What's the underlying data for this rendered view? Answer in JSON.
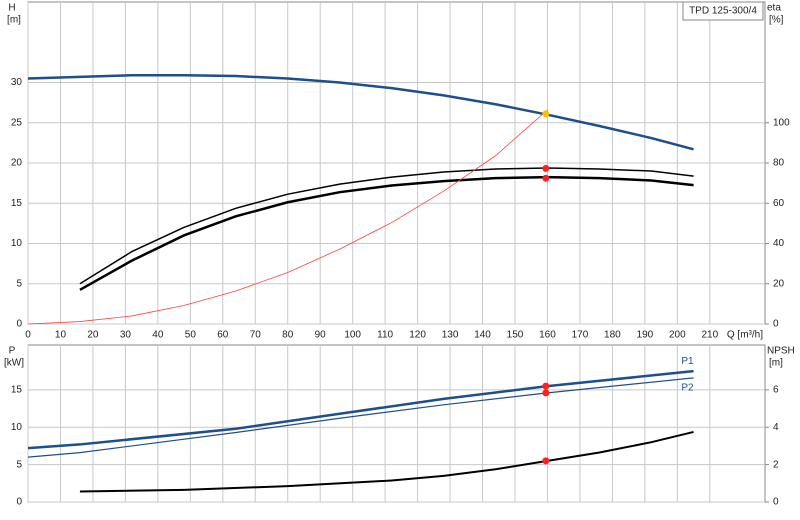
{
  "chart_data": [
    {
      "type": "line",
      "label_box": "TPD 125-300/4",
      "ylabel": "H",
      "yunit": "[m]",
      "y2label": "eta",
      "y2unit": "[%]",
      "xlabel": "Q [m³/h]",
      "xlim": [
        0,
        227
      ],
      "xticks": [
        0,
        10,
        20,
        30,
        40,
        50,
        60,
        70,
        80,
        90,
        100,
        110,
        120,
        130,
        140,
        150,
        160,
        170,
        180,
        190,
        200,
        210
      ],
      "ylim": [
        0,
        40
      ],
      "yticks": [
        0,
        5,
        10,
        15,
        20,
        25,
        30
      ],
      "y2lim": [
        0,
        160
      ],
      "y2ticks": [
        0,
        20,
        40,
        60,
        80,
        100
      ],
      "grid": true,
      "series": [
        {
          "color": "#1f4e8c",
          "width": 2.5,
          "x": [
            0,
            16,
            32,
            48,
            64,
            80,
            96,
            112,
            128,
            144,
            160,
            176,
            192,
            205
          ],
          "values": [
            30.5,
            30.7,
            30.9,
            30.9,
            30.8,
            30.5,
            30.0,
            29.3,
            28.4,
            27.3,
            26.0,
            24.6,
            23.1,
            21.7
          ]
        },
        {
          "color": "#000000",
          "width": 1.5,
          "axis": "y2",
          "x": [
            16,
            32,
            48,
            64,
            80,
            96,
            112,
            128,
            144,
            160,
            176,
            192,
            205
          ],
          "values": [
            20,
            36,
            48,
            57.5,
            64.5,
            69.5,
            73,
            75.5,
            77,
            77.5,
            77,
            76,
            73.5
          ]
        },
        {
          "color": "#000000",
          "width": 2.5,
          "axis": "y2",
          "x": [
            16,
            32,
            48,
            64,
            80,
            96,
            112,
            128,
            144,
            160,
            176,
            192,
            205
          ],
          "values": [
            17,
            31.5,
            44,
            53.5,
            60.5,
            65.5,
            68.8,
            71,
            72.5,
            73,
            72.5,
            71.3,
            69
          ]
        },
        {
          "color": "#ff4040",
          "width": 0.8,
          "x": [
            0,
            16,
            32,
            48,
            64,
            80,
            96,
            112,
            128,
            144,
            160
          ],
          "values": [
            0,
            0.3,
            1.0,
            2.3,
            4.1,
            6.4,
            9.3,
            12.6,
            16.5,
            20.9,
            26.6
          ]
        }
      ],
      "points": [
        {
          "x": 159.5,
          "y": 77.3,
          "axis": "y2",
          "color": "#ff2020"
        },
        {
          "x": 159.5,
          "y": 72.4,
          "axis": "y2",
          "color": "#ff2020"
        },
        {
          "x": 159.5,
          "y": 26.1,
          "color": "#ffc000"
        }
      ]
    },
    {
      "type": "line",
      "ylabel": "P",
      "yunit": "[kW]",
      "y2label": "NPSH",
      "y2unit": "[m]",
      "xlim": [
        0,
        227
      ],
      "xticks": [
        0,
        10,
        20,
        30,
        40,
        50,
        60,
        70,
        80,
        90,
        100,
        110,
        120,
        130,
        140,
        150,
        160,
        170,
        180,
        190,
        200,
        210
      ],
      "xtick_labels": false,
      "ylim": [
        0,
        21
      ],
      "yticks": [
        0,
        5,
        10,
        15
      ],
      "y2lim": [
        0,
        8.4
      ],
      "y2ticks": [
        0,
        2,
        4,
        6
      ],
      "grid": true,
      "series": [
        {
          "name": "P1",
          "color": "#1f4e8c",
          "width": 2.5,
          "x": [
            0,
            16,
            64,
            96,
            128,
            160,
            205
          ],
          "values": [
            7.2,
            7.7,
            9.8,
            11.8,
            13.8,
            15.5,
            17.5
          ]
        },
        {
          "name": "P2",
          "color": "#1f4e8c",
          "width": 1.2,
          "x": [
            0,
            16,
            64,
            96,
            128,
            160,
            205
          ],
          "values": [
            6.0,
            6.6,
            9.3,
            11.2,
            13.0,
            14.6,
            16.6
          ]
        },
        {
          "color": "#000000",
          "width": 2,
          "axis": "y2",
          "x": [
            16,
            48,
            80,
            112,
            128,
            144,
            160,
            176,
            192,
            205
          ],
          "values": [
            0.56,
            0.65,
            0.85,
            1.15,
            1.4,
            1.75,
            2.2,
            2.65,
            3.2,
            3.75
          ]
        }
      ],
      "points": [
        {
          "x": 159.5,
          "y": 15.5,
          "color": "#ff2020"
        },
        {
          "x": 159.5,
          "y": 14.6,
          "color": "#ff2020"
        },
        {
          "x": 159.5,
          "y": 2.2,
          "axis": "y2",
          "color": "#ff2020"
        }
      ]
    }
  ]
}
